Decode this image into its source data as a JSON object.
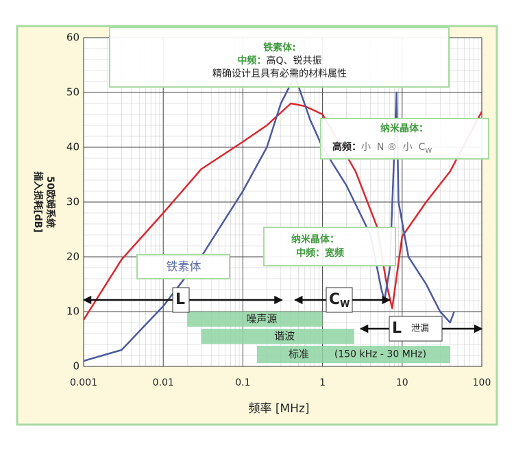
{
  "chart_data": {
    "type": "line",
    "x_label": "频率 [MHz]",
    "y_label": "插入损耗[dB]",
    "y_label_2": "50欧姆系统",
    "xlog": true,
    "grid": true,
    "xlim": [
      0.001,
      100
    ],
    "xticks": [
      0.001,
      0.01,
      0.1,
      1,
      10,
      100
    ],
    "ylim": [
      0,
      60
    ],
    "yticks": [
      0,
      10,
      20,
      30,
      40,
      50,
      60
    ],
    "series": [
      {
        "color": "#d9282f",
        "x": [
          0.001,
          0.003,
          0.01,
          0.03,
          0.1,
          0.2,
          0.4,
          0.6,
          1,
          2.6,
          4.8,
          6.5,
          7.5,
          10,
          20,
          40,
          100
        ],
        "values": [
          8.5,
          19.5,
          28,
          36,
          41,
          44,
          48,
          47.5,
          46,
          35.6,
          25.6,
          14.4,
          10.6,
          23.7,
          30,
          35.6,
          46.5
        ]
      },
      {
        "color": "#4a5aa0",
        "x": [
          0.001,
          0.003,
          0.01,
          0.03,
          0.1,
          0.2,
          0.3,
          0.45,
          0.7,
          1,
          2,
          4,
          5.5,
          6,
          7,
          8,
          8.5,
          9,
          12,
          20,
          30,
          40,
          45
        ],
        "values": [
          1,
          3,
          11,
          20,
          32,
          40,
          48,
          53,
          45,
          40,
          33,
          24,
          14,
          12,
          18,
          40,
          50,
          30,
          20,
          15,
          10,
          8,
          10
        ]
      }
    ],
    "callouts": {
      "ferrite_top": {
        "title": "铁素体:",
        "label": "中频：",
        "text": "高Q、锐共振",
        "note": "精确设计且具有必需的材料属性"
      },
      "nano_high": {
        "title": "纳米晶体：",
        "label": "高频：",
        "text": "小  N ®  小  C",
        "sub": "W"
      },
      "nano_mid": {
        "title": "纳米晶体：",
        "text": "中频：宽频"
      },
      "ferrite": {
        "text": "铁素体"
      }
    },
    "arrows": [
      {
        "label": "L",
        "from": 0.001,
        "to": 0.31
      },
      {
        "label": "C",
        "sub": "W",
        "from": 0.45,
        "to": 7
      },
      {
        "label": "L",
        "note": "泄漏",
        "from": 3,
        "to": 100
      }
    ],
    "bands": [
      {
        "label": "噪声源",
        "from": 0.02,
        "to": 1
      },
      {
        "label": "谐波",
        "from": 0.03,
        "to": 2.5
      },
      {
        "label": "标准",
        "note": "(150 kHz - 30 MHz)",
        "from": 0.15,
        "to": 40
      }
    ]
  }
}
